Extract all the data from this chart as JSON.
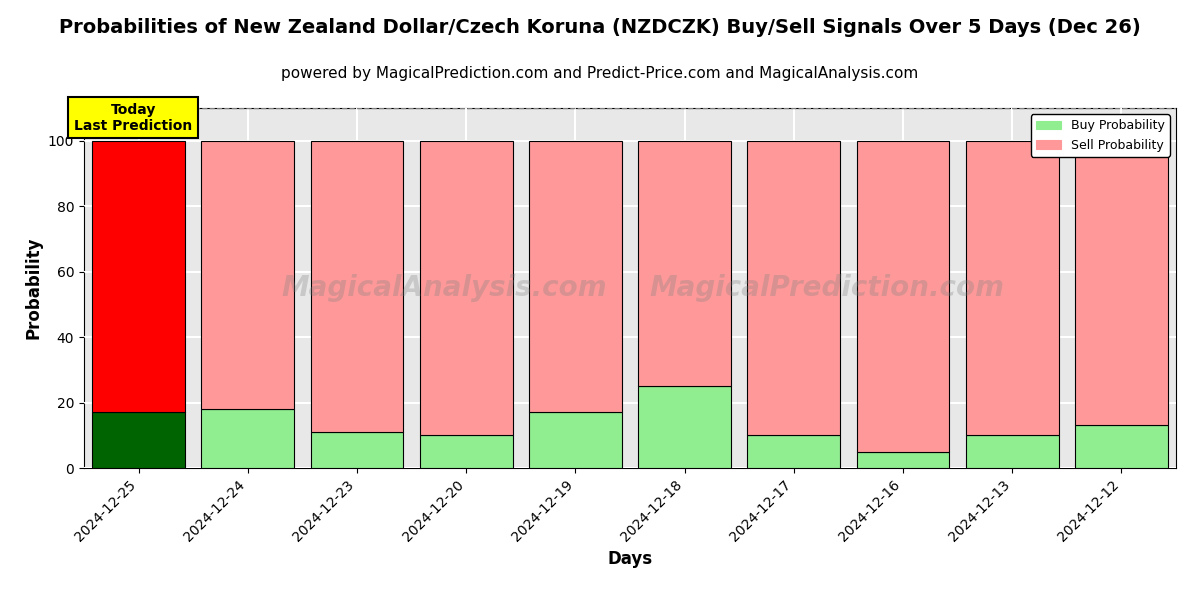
{
  "title": "Probabilities of New Zealand Dollar/Czech Koruna (NZDCZK) Buy/Sell Signals Over 5 Days (Dec 26)",
  "subtitle": "powered by MagicalPrediction.com and Predict-Price.com and MagicalAnalysis.com",
  "xlabel": "Days",
  "ylabel": "Probability",
  "categories": [
    "2024-12-25",
    "2024-12-24",
    "2024-12-23",
    "2024-12-20",
    "2024-12-19",
    "2024-12-18",
    "2024-12-17",
    "2024-12-16",
    "2024-12-13",
    "2024-12-12"
  ],
  "buy_values": [
    17,
    18,
    11,
    10,
    17,
    25,
    10,
    5,
    10,
    13
  ],
  "sell_values": [
    83,
    82,
    89,
    90,
    83,
    75,
    90,
    95,
    90,
    87
  ],
  "buy_colors": [
    "#006400",
    "#90EE90",
    "#90EE90",
    "#90EE90",
    "#90EE90",
    "#90EE90",
    "#90EE90",
    "#90EE90",
    "#90EE90",
    "#90EE90"
  ],
  "sell_colors": [
    "#FF0000",
    "#FF9999",
    "#FF9999",
    "#FF9999",
    "#FF9999",
    "#FF9999",
    "#FF9999",
    "#FF9999",
    "#FF9999",
    "#FF9999"
  ],
  "today_label": "Today\nLast Prediction",
  "today_bg": "#FFFF00",
  "today_border": "#000000",
  "legend_buy_color": "#90EE90",
  "legend_sell_color": "#FF9999",
  "ylim": [
    0,
    110
  ],
  "dashed_line_y": 110,
  "watermark1": "MagicalAnalysis.com",
  "watermark2": "MagicalPrediction.com",
  "bar_edge_color": "#000000",
  "bar_linewidth": 0.8,
  "grid_color": "#ffffff",
  "bg_color": "#e8e8e8",
  "title_fontsize": 14,
  "subtitle_fontsize": 11,
  "axis_label_fontsize": 12,
  "tick_fontsize": 10,
  "bar_width": 0.85
}
